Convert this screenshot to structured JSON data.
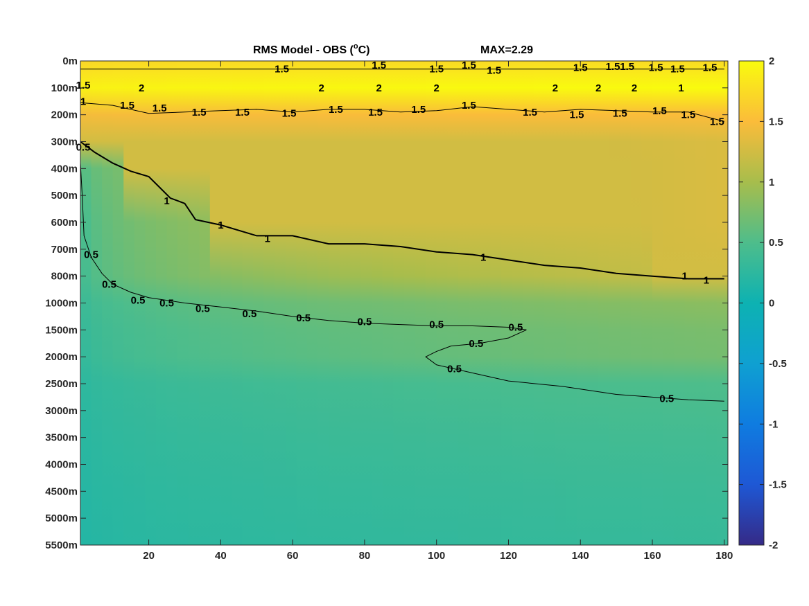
{
  "chart_data": {
    "type": "heatmap",
    "title": "RMS Model - OBS (",
    "title_superscript": "o",
    "title_unit": "C)",
    "annotation": "MAX=2.29",
    "x": {
      "lim": [
        1,
        181
      ],
      "ticks": [
        20,
        40,
        60,
        80,
        100,
        120,
        140,
        160,
        180
      ],
      "tick_labels": [
        "20",
        "40",
        "60",
        "80",
        "100",
        "120",
        "140",
        "160",
        "180"
      ]
    },
    "y": {
      "reversed": true,
      "tick_labels": [
        "0m",
        "100m",
        "200m",
        "300m",
        "400m",
        "500m",
        "600m",
        "700m",
        "800m",
        "1000m",
        "1500m",
        "2000m",
        "2500m",
        "3000m",
        "3500m",
        "4000m",
        "4500m",
        "5000m",
        "5500m"
      ]
    },
    "colorbar": {
      "colormap": "parula",
      "lim": [
        -2,
        2
      ],
      "ticks": [
        2,
        1.5,
        1,
        0.5,
        0,
        -0.5,
        -1,
        -1.5,
        -2
      ],
      "tick_labels": [
        "2",
        "1.5",
        "1",
        "0.5",
        "0",
        "-0.5",
        "-1",
        "-1.5",
        "-2"
      ]
    },
    "field_profile": {
      "depth_level_index": [
        0,
        1,
        2,
        3,
        4,
        6,
        8,
        9,
        10,
        11,
        12,
        14,
        16,
        18
      ],
      "rms_near_x1": [
        1.7,
        1.9,
        1.45,
        0.55,
        0.4,
        0.3,
        0.28,
        0.26,
        0.24,
        0.22,
        0.2,
        0.18,
        0.16,
        0.14
      ],
      "rms_near_x180": [
        1.75,
        2.0,
        1.5,
        1.3,
        1.3,
        1.3,
        1.2,
        0.85,
        0.75,
        0.72,
        0.5,
        0.42,
        0.36,
        0.32
      ]
    },
    "contours": [
      {
        "level": "1",
        "x": [
          1,
          5,
          10,
          15,
          20,
          23,
          26,
          30,
          33,
          40,
          50,
          60,
          70,
          80,
          90,
          100,
          110,
          120,
          130,
          140,
          150,
          160,
          170,
          180
        ],
        "y_level": [
          3.0,
          3.4,
          3.8,
          4.1,
          4.3,
          4.7,
          5.1,
          5.3,
          5.9,
          6.1,
          6.5,
          6.5,
          6.8,
          6.8,
          6.9,
          7.1,
          7.2,
          7.4,
          7.6,
          7.7,
          7.9,
          8.0,
          8.1,
          8.1
        ],
        "labels": [
          {
            "x": 25,
            "y_level": 5.2,
            "text": "1"
          },
          {
            "x": 40,
            "y_level": 6.1,
            "text": "1"
          },
          {
            "x": 53,
            "y_level": 6.6,
            "text": "1"
          },
          {
            "x": 113,
            "y_level": 7.3,
            "text": "1"
          },
          {
            "x": 169,
            "y_level": 8.0,
            "text": "1"
          },
          {
            "x": 175,
            "y_level": 8.15,
            "text": "1"
          }
        ]
      },
      {
        "level": "0.5",
        "x": [
          1,
          1.5,
          2,
          4,
          7,
          10,
          15,
          20,
          30,
          40,
          50,
          60,
          70,
          80,
          90,
          100,
          110,
          120,
          125
        ],
        "y_level": [
          3.8,
          5.0,
          6.5,
          7.3,
          7.9,
          8.3,
          8.6,
          8.8,
          9.0,
          9.15,
          9.3,
          9.5,
          9.65,
          9.75,
          9.8,
          9.85,
          9.85,
          9.9,
          10.0
        ],
        "labels": [
          {
            "x": 4,
            "y_level": 7.2,
            "text": "0.5"
          },
          {
            "x": 9,
            "y_level": 8.3,
            "text": "0.5"
          },
          {
            "x": 17,
            "y_level": 8.9,
            "text": "0.5"
          },
          {
            "x": 25,
            "y_level": 9.0,
            "text": "0.5"
          },
          {
            "x": 35,
            "y_level": 9.2,
            "text": "0.5"
          },
          {
            "x": 48,
            "y_level": 9.4,
            "text": "0.5"
          },
          {
            "x": 63,
            "y_level": 9.55,
            "text": "0.5"
          },
          {
            "x": 80,
            "y_level": 9.7,
            "text": "0.5"
          },
          {
            "x": 100,
            "y_level": 9.8,
            "text": "0.5"
          },
          {
            "x": 122,
            "y_level": 9.9,
            "text": "0.5"
          }
        ]
      },
      {
        "level": "0.5",
        "x": [
          125,
          120,
          112,
          104,
          100,
          97,
          100,
          110,
          120,
          135,
          150,
          160,
          170,
          180
        ],
        "y_level": [
          10.0,
          10.3,
          10.5,
          10.6,
          10.8,
          11.0,
          11.3,
          11.6,
          11.9,
          12.1,
          12.4,
          12.5,
          12.6,
          12.65
        ],
        "labels": [
          {
            "x": 111,
            "y_level": 10.5,
            "text": "0.5"
          },
          {
            "x": 105,
            "y_level": 11.45,
            "text": "0.5"
          },
          {
            "x": 164,
            "y_level": 12.55,
            "text": "0.5"
          }
        ]
      },
      {
        "level": "1.5",
        "x": [
          1,
          10,
          20,
          30,
          40,
          50,
          60,
          70,
          80,
          90,
          100,
          110,
          120,
          130,
          140,
          150,
          160,
          170,
          180
        ],
        "y_level": [
          1.55,
          1.65,
          1.95,
          1.9,
          1.85,
          1.8,
          1.9,
          1.8,
          1.8,
          1.9,
          1.85,
          1.7,
          1.8,
          1.9,
          1.8,
          1.85,
          1.9,
          1.9,
          2.25
        ],
        "labels": [
          {
            "x": 14,
            "y_level": 1.65,
            "text": "1.5"
          },
          {
            "x": 23,
            "y_level": 1.75,
            "text": "1.5"
          },
          {
            "x": 34,
            "y_level": 1.9,
            "text": "1.5"
          },
          {
            "x": 46,
            "y_level": 1.9,
            "text": "1.5"
          },
          {
            "x": 59,
            "y_level": 1.95,
            "text": "1.5"
          },
          {
            "x": 72,
            "y_level": 1.8,
            "text": "1.5"
          },
          {
            "x": 83,
            "y_level": 1.9,
            "text": "1.5"
          },
          {
            "x": 95,
            "y_level": 1.8,
            "text": "1.5"
          },
          {
            "x": 109,
            "y_level": 1.65,
            "text": "1.5"
          },
          {
            "x": 126,
            "y_level": 1.9,
            "text": "1.5"
          },
          {
            "x": 139,
            "y_level": 2.0,
            "text": "1.5"
          },
          {
            "x": 151,
            "y_level": 1.95,
            "text": "1.5"
          },
          {
            "x": 162,
            "y_level": 1.85,
            "text": "1.5"
          },
          {
            "x": 170,
            "y_level": 2.0,
            "text": "1.5"
          },
          {
            "x": 178,
            "y_level": 2.25,
            "text": "1.5"
          }
        ]
      },
      {
        "level": "1.5",
        "x": [
          1,
          20,
          40,
          60,
          80,
          100,
          120,
          140,
          160,
          180
        ],
        "y_level": [
          0.3,
          0.3,
          0.3,
          0.3,
          0.3,
          0.3,
          0.3,
          0.3,
          0.3,
          0.3
        ],
        "labels": [
          {
            "x": 57,
            "y_level": 0.3,
            "text": "1.5"
          },
          {
            "x": 84,
            "y_level": 0.15,
            "text": "1.5"
          },
          {
            "x": 100,
            "y_level": 0.3,
            "text": "1.5"
          },
          {
            "x": 109,
            "y_level": 0.15,
            "text": "1.5"
          },
          {
            "x": 116,
            "y_level": 0.35,
            "text": "1.5"
          },
          {
            "x": 140,
            "y_level": 0.25,
            "text": "1.5"
          },
          {
            "x": 149,
            "y_level": 0.2,
            "text": "1.5"
          },
          {
            "x": 153,
            "y_level": 0.2,
            "text": "1.5"
          },
          {
            "x": 161,
            "y_level": 0.25,
            "text": "1.5"
          },
          {
            "x": 167,
            "y_level": 0.3,
            "text": "1.5"
          },
          {
            "x": 176,
            "y_level": 0.25,
            "text": "1.5"
          }
        ]
      }
    ],
    "marks_near_100m": [
      {
        "x": 18,
        "text": "2"
      },
      {
        "x": 68,
        "text": "2"
      },
      {
        "x": 84,
        "text": "2"
      },
      {
        "x": 100,
        "text": "2"
      },
      {
        "x": 133,
        "text": "2"
      },
      {
        "x": 145,
        "text": "2"
      },
      {
        "x": 155,
        "text": "2"
      },
      {
        "x": 168,
        "text": "1"
      }
    ],
    "left_edge_labels": [
      {
        "y_level": 0.9,
        "text": "1.5"
      },
      {
        "y_level": 1.5,
        "text": "1"
      },
      {
        "y_level": 3.2,
        "text": "0.5"
      }
    ]
  }
}
